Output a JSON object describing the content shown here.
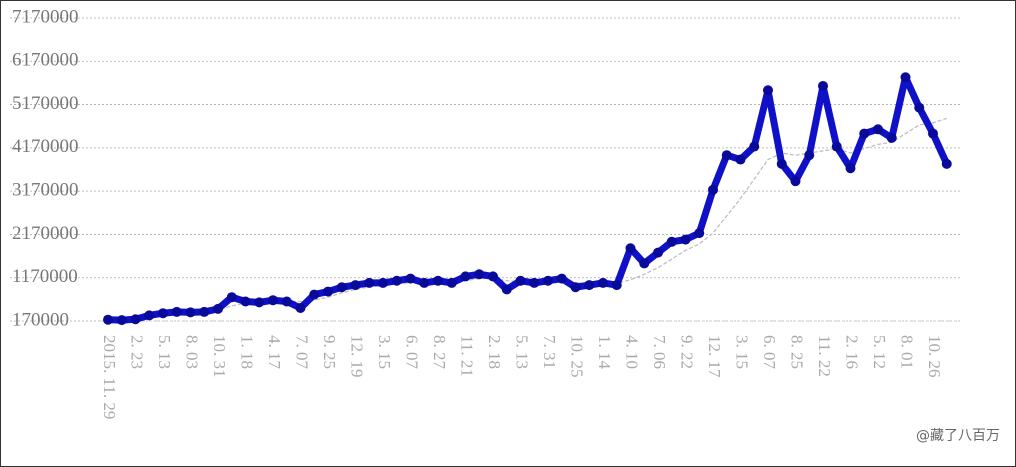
{
  "chart_data": {
    "type": "line",
    "categories": [
      "2015. 11. 29",
      null,
      "2. 23",
      null,
      "5. 13",
      null,
      "8. 03",
      null,
      "10. 31",
      null,
      "1. 18",
      null,
      "4. 17",
      null,
      "7. 07",
      null,
      "9. 25",
      null,
      "12. 19",
      null,
      "3. 15",
      null,
      "6. 07",
      null,
      "8. 27",
      null,
      "11. 21",
      null,
      "2. 18",
      null,
      "5. 13",
      null,
      "7. 31",
      null,
      "10. 25",
      null,
      "1. 14",
      null,
      "4. 10",
      null,
      "7. 06",
      null,
      "9. 22",
      null,
      "12. 17",
      null,
      "3. 15",
      null,
      "6. 07",
      null,
      "8. 25",
      null,
      "11. 22",
      null,
      "2. 16",
      null,
      "5. 12",
      null,
      "8. 01",
      null,
      "10. 26",
      null
    ],
    "series": [
      {
        "color": "#1010c8",
        "values": [
          200000,
          190000,
          210000,
          300000,
          350000,
          380000,
          370000,
          380000,
          450000,
          720000,
          620000,
          600000,
          650000,
          620000,
          470000,
          780000,
          850000,
          950000,
          1000000,
          1050000,
          1050000,
          1100000,
          1150000,
          1050000,
          1100000,
          1050000,
          1200000,
          1250000,
          1200000,
          900000,
          1100000,
          1050000,
          1100000,
          1150000,
          950000,
          1000000,
          1050000,
          1000000,
          1850000,
          1500000,
          1750000,
          2000000,
          2050000,
          2200000,
          3200000,
          4000000,
          3900000,
          4200000,
          5500000,
          3800000,
          3400000,
          4000000,
          5600000,
          4200000,
          3700000,
          4500000,
          4600000,
          4400000,
          5800000,
          5100000,
          4500000,
          3800000
        ]
      },
      {
        "color": "#bbbbbb",
        "values": [
          null,
          null,
          null,
          250000,
          300000,
          330000,
          360000,
          380000,
          420000,
          520000,
          580000,
          600000,
          620000,
          620000,
          620000,
          650000,
          720000,
          820000,
          900000,
          960000,
          1000000,
          1030000,
          1060000,
          1070000,
          1080000,
          1080000,
          1100000,
          1150000,
          1150000,
          1100000,
          1080000,
          1060000,
          1060000,
          1060000,
          1050000,
          1040000,
          1040000,
          1040000,
          1120000,
          1250000,
          1400000,
          1600000,
          1800000,
          1950000,
          2200000,
          2600000,
          3000000,
          3450000,
          3900000,
          4050000,
          4000000,
          4050000,
          4100000,
          4150000,
          4050000,
          4150000,
          4250000,
          4300000,
          4500000,
          4700000,
          4750000,
          4850000
        ]
      }
    ],
    "ylim": [
      170000,
      7170000
    ],
    "yticks": [
      170000,
      1170000,
      2170000,
      3170000,
      4170000,
      5170000,
      6170000,
      7170000
    ],
    "grid": true,
    "annotation": "@藏了八百万"
  }
}
